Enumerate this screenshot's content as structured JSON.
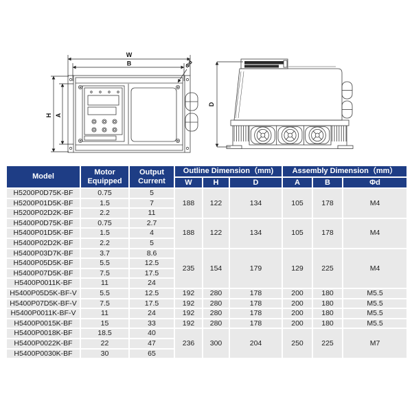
{
  "drawings": {
    "front_view": {
      "width_label": "W",
      "mount_width_label": "B",
      "height_label": "H",
      "mount_height_label": "A",
      "hole_label": "Φd"
    },
    "side_view": {
      "depth_label": "D"
    }
  },
  "table": {
    "headers": {
      "model": "Model",
      "motor": "Motor Equipped",
      "current": "Output Current",
      "outline_group": "Outline Dimension（mm)",
      "assembly_group": "Assembly Dimension（mm）",
      "w": "W",
      "h": "H",
      "d": "D",
      "a": "A",
      "b": "B",
      "phid": "Φd"
    },
    "rows": [
      {
        "model": "H5200P0D75K-BF",
        "motor": "0.75",
        "current": "5",
        "dims": {
          "span": 3,
          "w": "188",
          "h": "122",
          "d": "134",
          "a": "105",
          "b": "178",
          "phid": "M4"
        }
      },
      {
        "model": "H5200P01D5K-BF",
        "motor": "1.5",
        "current": "7"
      },
      {
        "model": "H5200P02D2K-BF",
        "motor": "2.2",
        "current": "11"
      },
      {
        "model": "H5400P0D75K-BF",
        "motor": "0.75",
        "current": "2.7",
        "dims": {
          "span": 3,
          "w": "188",
          "h": "122",
          "d": "134",
          "a": "105",
          "b": "178",
          "phid": "M4"
        }
      },
      {
        "model": "H5400P01D5K-BF",
        "motor": "1.5",
        "current": "4"
      },
      {
        "model": "H5400P02D2K-BF",
        "motor": "2.2",
        "current": "5"
      },
      {
        "model": "H5400P03D7K-BF",
        "motor": "3.7",
        "current": "8.6",
        "dims": {
          "span": 4,
          "w": "235",
          "h": "154",
          "d": "179",
          "a": "129",
          "b": "225",
          "phid": "M4"
        }
      },
      {
        "model": "H5400P05D5K-BF",
        "motor": "5.5",
        "current": "12.5"
      },
      {
        "model": "H5400P07D5K-BF",
        "motor": "7.5",
        "current": "17.5"
      },
      {
        "model": "H5400P0011K-BF",
        "motor": "11",
        "current": "24"
      },
      {
        "model": "H5400P05D5K-BF-V",
        "motor": "5.5",
        "current": "12.5",
        "dims": {
          "span": 1,
          "w": "192",
          "h": "280",
          "d": "178",
          "a": "200",
          "b": "180",
          "phid": "M5.5"
        }
      },
      {
        "model": "H5400P07D5K-BF-V",
        "motor": "7.5",
        "current": "17.5",
        "dims": {
          "span": 1,
          "w": "192",
          "h": "280",
          "d": "178",
          "a": "200",
          "b": "180",
          "phid": "M5.5"
        }
      },
      {
        "model": "H5400P0011K-BF-V",
        "motor": "11",
        "current": "24",
        "dims": {
          "span": 1,
          "w": "192",
          "h": "280",
          "d": "178",
          "a": "200",
          "b": "180",
          "phid": "M5.5"
        }
      },
      {
        "model": "H5400P0015K-BF",
        "motor": "15",
        "current": "33",
        "dims": {
          "span": 1,
          "w": "192",
          "h": "280",
          "d": "178",
          "a": "200",
          "b": "180",
          "phid": "M5.5"
        }
      },
      {
        "model": "H5400P0018K-BF",
        "motor": "18.5",
        "current": "40",
        "dims": {
          "span": 3,
          "w": "236",
          "h": "300",
          "d": "204",
          "a": "250",
          "b": "225",
          "phid": "M7"
        }
      },
      {
        "model": "H5400P0022K-BF",
        "motor": "22",
        "current": "47"
      },
      {
        "model": "H5400P0030K-BF",
        "motor": "30",
        "current": "65"
      }
    ]
  },
  "colors": {
    "header_bg": "#1e3d85",
    "row_bg": "#e9e9e9"
  }
}
